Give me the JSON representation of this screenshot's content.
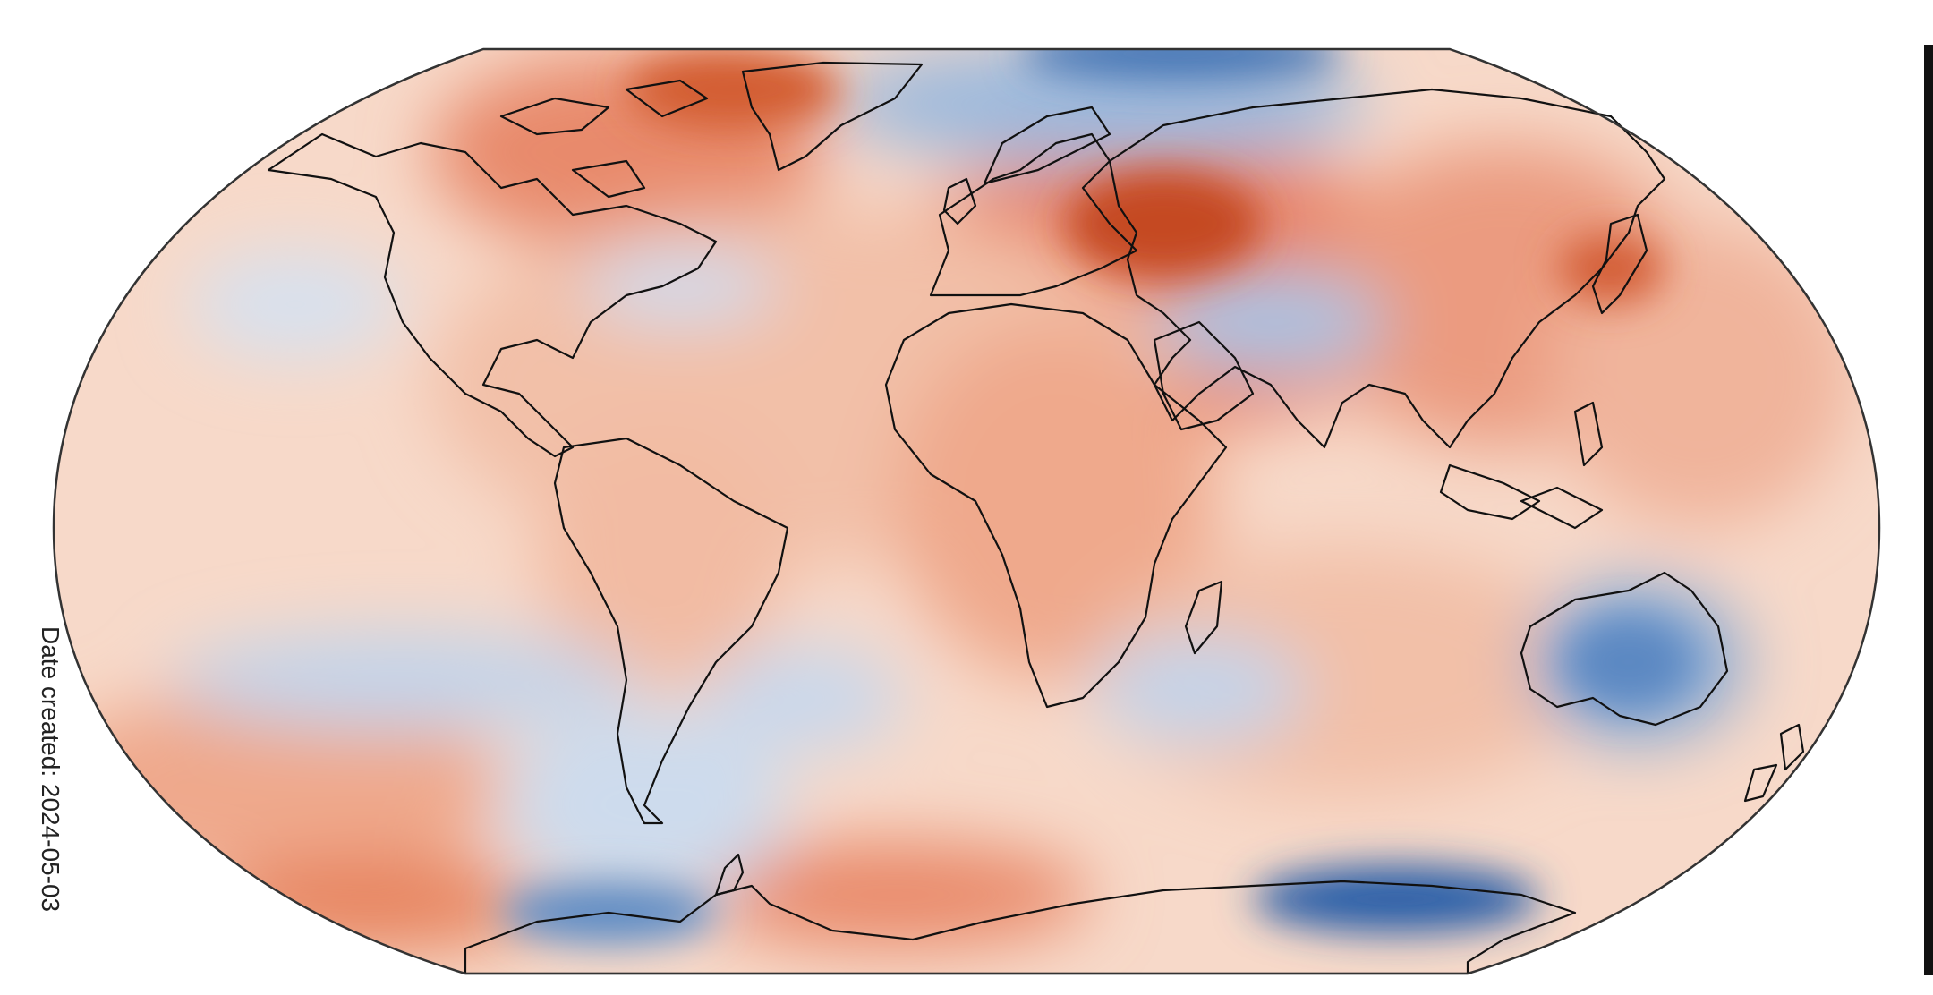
{
  "figure": {
    "date_label": "Date created: 2024-05-03",
    "projection": "robinson",
    "colormap": "diverging blue-white-red",
    "colors": {
      "warm_strong": "#b93a12",
      "warm_mid": "#e8825f",
      "warm_light": "#f6d2c0",
      "neutral": "#f7eee8",
      "cool_light": "#cfdcec",
      "cool_mid": "#7fa6d1",
      "cool_strong": "#1f56a3",
      "coastline": "#111111",
      "outline": "#333333"
    }
  }
}
